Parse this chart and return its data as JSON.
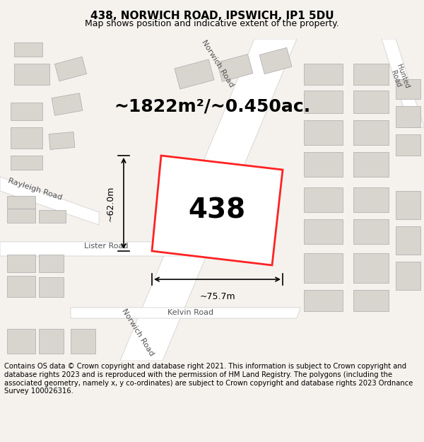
{
  "title": "438, NORWICH ROAD, IPSWICH, IP1 5DU",
  "subtitle": "Map shows position and indicative extent of the property.",
  "area_text": "~1822m²/~0.450ac.",
  "property_number": "438",
  "width_label": "~75.7m",
  "height_label": "~62.0m",
  "footer": "Contains OS data © Crown copyright and database right 2021. This information is subject to Crown copyright and database rights 2023 and is reproduced with the permission of HM Land Registry. The polygons (including the associated geometry, namely x, y co-ordinates) are subject to Crown copyright and database rights 2023 Ordnance Survey 100026316.",
  "bg_color": "#f0ede8",
  "map_bg": "#f5f2ee",
  "road_color": "#ffffff",
  "building_color": "#d8d4ce",
  "highlight_color": "#ff2222",
  "property_fill": "#ffffff",
  "title_fontsize": 11,
  "subtitle_fontsize": 9,
  "area_fontsize": 18,
  "number_fontsize": 28,
  "footer_fontsize": 7.2
}
